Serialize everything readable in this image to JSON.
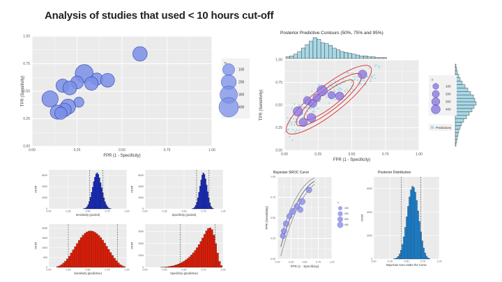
{
  "slide": {
    "title": "Analysis of studies that used < 10 hours cut-off"
  },
  "chart_data": [
    {
      "id": "bubble",
      "type": "scatter",
      "title": "",
      "xlabel": "FPR (1 - Specificity)",
      "ylabel": "TPR (Sensitivity)",
      "xlim": [
        0,
        1
      ],
      "ylim": [
        0,
        1
      ],
      "xticks": [
        "0.00",
        "0.25",
        "0.50",
        "0.75",
        "1.00"
      ],
      "yticks": [
        "0.00",
        "0.25",
        "0.50",
        "0.75",
        "1.00"
      ],
      "legend_title": "n",
      "legend_values": [
        "100",
        "200",
        "300",
        "400"
      ],
      "legend_placement": "right",
      "grid": true,
      "point_color": "#7b8fe8",
      "points": [
        {
          "x": 0.6,
          "y": 0.84,
          "n": 180
        },
        {
          "x": 0.29,
          "y": 0.66,
          "n": 330
        },
        {
          "x": 0.36,
          "y": 0.61,
          "n": 110
        },
        {
          "x": 0.42,
          "y": 0.6,
          "n": 160
        },
        {
          "x": 0.25,
          "y": 0.58,
          "n": 130
        },
        {
          "x": 0.33,
          "y": 0.57,
          "n": 150
        },
        {
          "x": 0.17,
          "y": 0.55,
          "n": 140
        },
        {
          "x": 0.21,
          "y": 0.53,
          "n": 160
        },
        {
          "x": 0.1,
          "y": 0.43,
          "n": 250
        },
        {
          "x": 0.26,
          "y": 0.4,
          "n": 60
        },
        {
          "x": 0.2,
          "y": 0.36,
          "n": 200
        },
        {
          "x": 0.18,
          "y": 0.33,
          "n": 150
        },
        {
          "x": 0.14,
          "y": 0.31,
          "n": 170
        },
        {
          "x": 0.16,
          "y": 0.3,
          "n": 110
        }
      ]
    },
    {
      "id": "posterior-contours",
      "type": "scatter",
      "title": "Posterior Predictive Contours (50%, 75% and 95%)",
      "xlabel": "FPR (1 - Specificity)",
      "ylabel": "TPR (Sensitivity)",
      "xlim": [
        0,
        1
      ],
      "ylim": [
        0,
        1
      ],
      "xticks": [
        "0.00",
        "0.25",
        "0.50",
        "0.75",
        "1.00"
      ],
      "yticks": [
        "0.00",
        "0.25",
        "0.50",
        "0.75",
        "1.00"
      ],
      "legend_title": "n",
      "legend_values": [
        "100",
        "200",
        "300",
        "400"
      ],
      "legend_extra": "Predictions",
      "legend_placement": "right",
      "grid": true,
      "point_color": "#8a6fdc",
      "prediction_color": "#9fdbe6",
      "contour_color": "#d9302c",
      "contour_levels": [
        0.5,
        0.75,
        0.95
      ],
      "points": [
        {
          "x": 0.58,
          "y": 0.84,
          "n": 180
        },
        {
          "x": 0.28,
          "y": 0.66,
          "n": 330
        },
        {
          "x": 0.35,
          "y": 0.61,
          "n": 110
        },
        {
          "x": 0.41,
          "y": 0.6,
          "n": 160
        },
        {
          "x": 0.24,
          "y": 0.58,
          "n": 130
        },
        {
          "x": 0.17,
          "y": 0.55,
          "n": 140
        },
        {
          "x": 0.21,
          "y": 0.52,
          "n": 160
        },
        {
          "x": 0.1,
          "y": 0.43,
          "n": 250
        },
        {
          "x": 0.2,
          "y": 0.36,
          "n": 200
        },
        {
          "x": 0.14,
          "y": 0.31,
          "n": 170
        }
      ],
      "top_histogram": [
        2,
        3,
        5,
        8,
        12,
        16,
        20,
        24,
        22,
        18,
        17,
        15,
        12,
        10,
        8,
        7,
        6,
        5,
        4,
        3,
        3,
        2,
        2,
        1,
        1,
        1
      ],
      "right_histogram": [
        1,
        2,
        3,
        5,
        7,
        10,
        14,
        18,
        22,
        26,
        28,
        30,
        27,
        24,
        20,
        16,
        12,
        9,
        7,
        5,
        4,
        3,
        2,
        1
      ]
    },
    {
      "id": "sens-pooled",
      "type": "bar",
      "xlabel": "Sensitivity (pooled)",
      "ylabel": "count",
      "xticks": [
        "0.00",
        "0.25",
        "0.50",
        "0.75",
        "1.00"
      ],
      "yticks": [
        "0",
        "2000",
        "4000",
        "6000"
      ],
      "ylim": [
        0,
        7000
      ],
      "color": "#1428c8",
      "dashed_lines": [
        0.52,
        0.69
      ],
      "bins_from": 0.44,
      "bins_to": 0.8,
      "values": [
        30,
        80,
        200,
        420,
        800,
        1350,
        2100,
        3000,
        3900,
        4900,
        5700,
        6300,
        6500,
        6200,
        5600,
        4700,
        3800,
        2900,
        2000,
        1300,
        800,
        450,
        220,
        100,
        40
      ]
    },
    {
      "id": "spec-pooled",
      "type": "bar",
      "xlabel": "Specificity (pooled)",
      "ylabel": "count",
      "xticks": [
        "0.00",
        "0.25",
        "0.50",
        "0.75",
        "1.00"
      ],
      "yticks": [
        "0",
        "2000",
        "4000",
        "6000"
      ],
      "ylim": [
        0,
        7000
      ],
      "color": "#1428c8",
      "dashed_lines": [
        0.66,
        0.82
      ],
      "bins_from": 0.6,
      "bins_to": 0.88,
      "values": [
        40,
        120,
        300,
        650,
        1200,
        2000,
        3000,
        4100,
        5200,
        6100,
        6500,
        6200,
        5400,
        4300,
        3100,
        2000,
        1100,
        500,
        200,
        60
      ]
    },
    {
      "id": "sens-predictive",
      "type": "bar",
      "xlabel": "Sensitivity (predictive)",
      "ylabel": "count",
      "xticks": [
        "0.00",
        "0.25",
        "0.50",
        "0.75",
        "1.00"
      ],
      "yticks": [
        "0",
        "500",
        "1000",
        "1500",
        "2000"
      ],
      "ylim": [
        0,
        2200
      ],
      "color": "#e21b05",
      "dashed_lines": [
        0.25,
        0.88
      ],
      "bins_from": 0.1,
      "bins_to": 0.98,
      "values": [
        40,
        80,
        140,
        220,
        320,
        440,
        580,
        740,
        900,
        1060,
        1220,
        1380,
        1520,
        1640,
        1740,
        1810,
        1850,
        1860,
        1840,
        1790,
        1720,
        1630,
        1520,
        1390,
        1240,
        1080,
        920,
        760,
        610,
        470,
        340,
        230,
        140,
        80,
        40
      ]
    },
    {
      "id": "spec-predictive",
      "type": "bar",
      "xlabel": "Specificity (predictive)",
      "ylabel": "count",
      "xticks": [
        "0.00",
        "0.25",
        "0.50",
        "0.75",
        "1.00"
      ],
      "yticks": [
        "0",
        "1000",
        "2000",
        "3000"
      ],
      "ylim": [
        0,
        3600
      ],
      "color": "#e21b05",
      "dashed_lines": [
        0.45,
        0.9
      ],
      "bins_from": 0.2,
      "bins_to": 0.99,
      "values": [
        10,
        20,
        30,
        50,
        70,
        100,
        130,
        170,
        220,
        280,
        350,
        430,
        520,
        620,
        740,
        880,
        1040,
        1220,
        1420,
        1650,
        1900,
        2170,
        2460,
        2760,
        3050,
        3250,
        3300,
        3150,
        2700,
        2000,
        1200,
        500,
        150
      ]
    },
    {
      "id": "sroc",
      "type": "scatter",
      "title": "Bayesian SROC Curve",
      "xlabel": "FPR (1 - Specificity)",
      "ylabel": "TPR (Sensitivity)",
      "xlim": [
        0,
        1
      ],
      "ylim": [
        0,
        1
      ],
      "xticks": [
        "0.00",
        "0.25",
        "0.50",
        "0.75",
        "1.00"
      ],
      "yticks": [
        "0.00",
        "0.25",
        "0.50",
        "0.75",
        "1.00"
      ],
      "legend_title": "n",
      "legend_values": [
        "100",
        "200",
        "300",
        "400"
      ],
      "legend_placement": "right",
      "point_color": "#8a8ce8",
      "points": [
        {
          "x": 0.58,
          "y": 0.84,
          "n": 180
        },
        {
          "x": 0.45,
          "y": 0.7,
          "n": 250
        },
        {
          "x": 0.36,
          "y": 0.64,
          "n": 200
        },
        {
          "x": 0.42,
          "y": 0.6,
          "n": 160
        },
        {
          "x": 0.28,
          "y": 0.58,
          "n": 220
        },
        {
          "x": 0.22,
          "y": 0.52,
          "n": 160
        },
        {
          "x": 0.16,
          "y": 0.43,
          "n": 200
        },
        {
          "x": 0.12,
          "y": 0.34,
          "n": 170
        },
        {
          "x": 0.1,
          "y": 0.28,
          "n": 150
        }
      ]
    },
    {
      "id": "posterior-distribution",
      "type": "bar",
      "title": "Posterior Distribution",
      "xlabel": "Bayesian Area Under the Curve",
      "ylabel": "count",
      "xticks": [
        "0.00",
        "0.25",
        "0.50",
        "0.75",
        "1.00"
      ],
      "yticks": [
        "0",
        "2000",
        "4000",
        "6000"
      ],
      "ylim": [
        0,
        7000
      ],
      "color": "#1c85d6",
      "dashed_lines": [
        0.42,
        0.72
      ],
      "bins_from": 0.3,
      "bins_to": 0.86,
      "values": [
        20,
        50,
        110,
        230,
        430,
        760,
        1250,
        1900,
        2700,
        3600,
        4500,
        5300,
        5900,
        6200,
        6100,
        5700,
        5000,
        4100,
        3200,
        2300,
        1550,
        950,
        520,
        260,
        110,
        40
      ]
    }
  ]
}
